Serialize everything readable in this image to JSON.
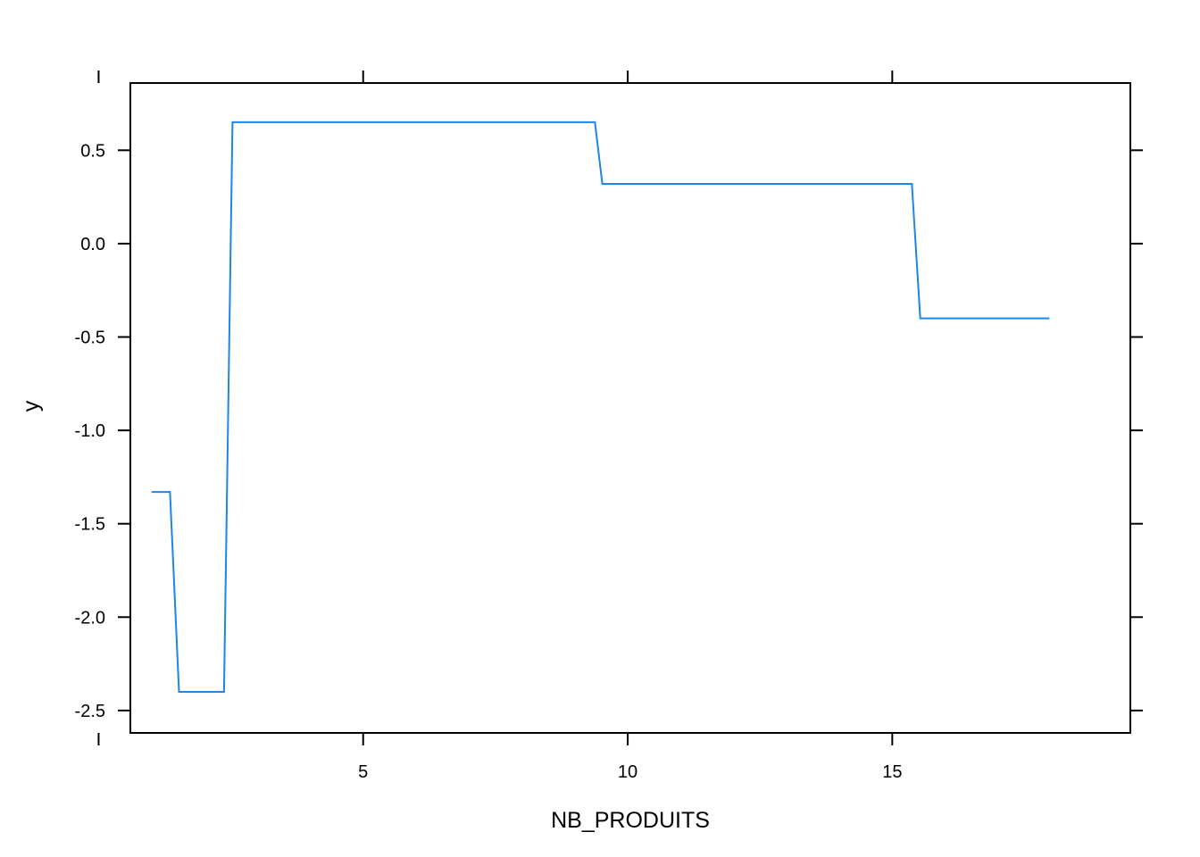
{
  "chart_data": {
    "type": "line",
    "title": "",
    "xlabel": "NB_PRODUITS",
    "ylabel": "y",
    "xlim": [
      0.6,
      19.5
    ],
    "ylim": [
      -2.62,
      0.86
    ],
    "x_ticks": [
      0,
      5,
      10,
      15
    ],
    "x_tick_labels": [
      "",
      "5",
      "10",
      "15"
    ],
    "y_ticks": [
      0.5,
      0.0,
      -0.5,
      -1.0,
      -1.5,
      -2.0,
      -2.5
    ],
    "y_tick_labels": [
      "0.5",
      "0.0",
      "-0.5",
      "-1.0",
      "-1.5",
      "-2.0",
      "-2.5"
    ],
    "grid": false,
    "series": [
      {
        "name": "y",
        "color": "#1d86e6",
        "x": [
          1.0,
          1.35,
          1.52,
          2.37,
          2.53,
          9.38,
          9.52,
          15.37,
          15.53,
          17.97
        ],
        "y": [
          -1.33,
          -1.33,
          -2.4,
          -2.4,
          0.65,
          0.65,
          0.32,
          0.32,
          -0.4,
          -0.4
        ]
      }
    ]
  }
}
